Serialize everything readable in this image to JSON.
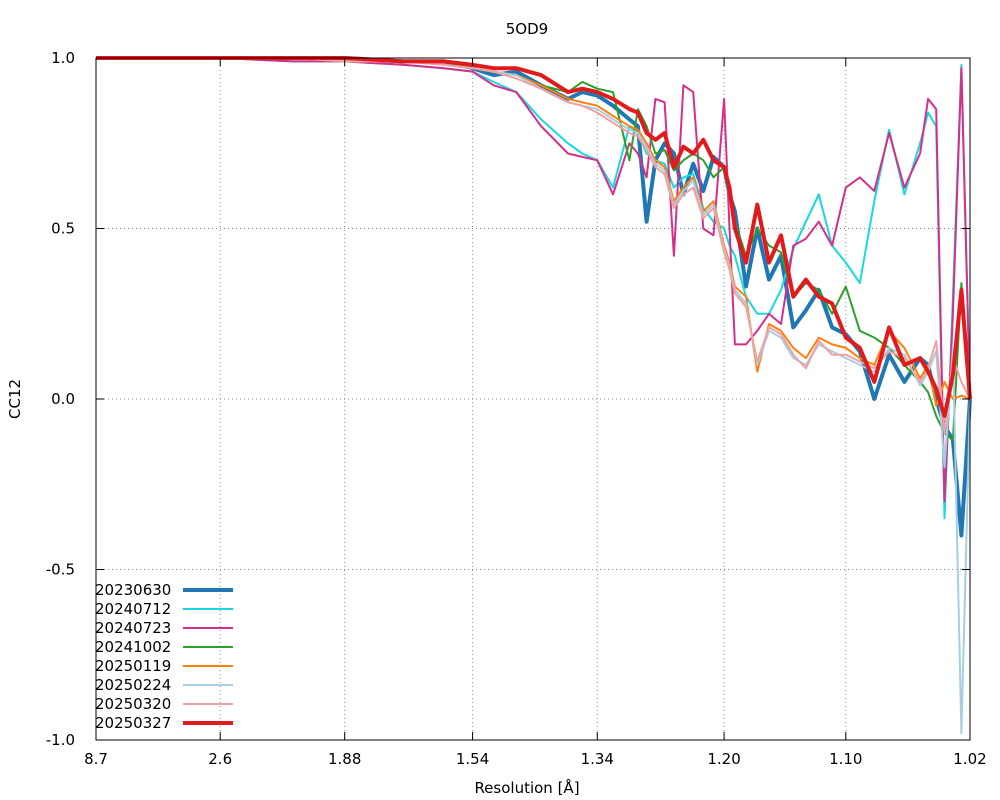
{
  "chart_data": {
    "type": "line",
    "title": "5OD9",
    "xlabel": "Resolution [Å]",
    "ylabel": "CC12",
    "ylim": [
      -1.0,
      1.0
    ],
    "yticks": [
      {
        "value": 1.0,
        "label": "1.0"
      },
      {
        "value": 0.5,
        "label": "0.5"
      },
      {
        "value": 0.0,
        "label": "0.0"
      },
      {
        "value": -0.5,
        "label": "-0.5"
      },
      {
        "value": -1.0,
        "label": "-1.0"
      }
    ],
    "x_scale": "1/d^2",
    "xlim": [
      8.7,
      1.02
    ],
    "xticks": [
      {
        "value": 8.7,
        "label": "8.7"
      },
      {
        "value": 2.6,
        "label": "2.6"
      },
      {
        "value": 1.88,
        "label": "1.88"
      },
      {
        "value": 1.54,
        "label": "1.54"
      },
      {
        "value": 1.34,
        "label": "1.34"
      },
      {
        "value": 1.2,
        "label": "1.20"
      },
      {
        "value": 1.1,
        "label": "1.10"
      },
      {
        "value": 1.02,
        "label": "1.02"
      }
    ],
    "grid": true,
    "legend_position": "bottom-left",
    "series": [
      {
        "name": "20230630",
        "color": "#1f77b4",
        "width": 4,
        "x": [
          8.7,
          3.5,
          2.6,
          2.1,
          1.88,
          1.7,
          1.6,
          1.54,
          1.5,
          1.46,
          1.42,
          1.38,
          1.36,
          1.34,
          1.32,
          1.3,
          1.29,
          1.28,
          1.27,
          1.26,
          1.25,
          1.24,
          1.23,
          1.22,
          1.21,
          1.2,
          1.195,
          1.19,
          1.18,
          1.17,
          1.16,
          1.15,
          1.14,
          1.13,
          1.12,
          1.11,
          1.1,
          1.09,
          1.08,
          1.07,
          1.06,
          1.05,
          1.045,
          1.04,
          1.035,
          1.03,
          1.025,
          1.02
        ],
        "y": [
          1.0,
          1.0,
          1.0,
          1.0,
          1.0,
          0.99,
          0.99,
          0.97,
          0.95,
          0.96,
          0.92,
          0.88,
          0.9,
          0.89,
          0.86,
          0.82,
          0.8,
          0.52,
          0.7,
          0.75,
          0.72,
          0.6,
          0.69,
          0.61,
          0.71,
          0.68,
          0.6,
          0.55,
          0.33,
          0.5,
          0.35,
          0.42,
          0.21,
          0.26,
          0.32,
          0.21,
          0.19,
          0.14,
          0.0,
          0.13,
          0.05,
          0.12,
          0.1,
          0.0,
          -0.08,
          -0.12,
          -0.4,
          0.0
        ]
      },
      {
        "name": "20240712",
        "color": "#17d9e0",
        "width": 2,
        "x": [
          8.7,
          3.5,
          2.6,
          2.1,
          1.88,
          1.7,
          1.6,
          1.54,
          1.5,
          1.46,
          1.42,
          1.38,
          1.36,
          1.34,
          1.32,
          1.3,
          1.29,
          1.28,
          1.27,
          1.26,
          1.25,
          1.24,
          1.23,
          1.22,
          1.21,
          1.2,
          1.195,
          1.19,
          1.18,
          1.17,
          1.16,
          1.15,
          1.14,
          1.13,
          1.12,
          1.11,
          1.1,
          1.09,
          1.08,
          1.07,
          1.06,
          1.05,
          1.045,
          1.04,
          1.035,
          1.03,
          1.025,
          1.02
        ],
        "y": [
          1.0,
          1.0,
          1.0,
          0.99,
          0.99,
          0.98,
          0.97,
          0.96,
          0.93,
          0.9,
          0.82,
          0.75,
          0.72,
          0.7,
          0.62,
          0.8,
          0.78,
          0.72,
          0.7,
          0.69,
          0.62,
          0.65,
          0.66,
          0.56,
          0.52,
          0.5,
          0.45,
          0.42,
          0.3,
          0.25,
          0.25,
          0.32,
          0.44,
          0.52,
          0.6,
          0.45,
          0.4,
          0.34,
          0.58,
          0.79,
          0.6,
          0.75,
          0.84,
          0.8,
          -0.35,
          0.3,
          0.98,
          0.0
        ]
      },
      {
        "name": "20240723",
        "color": "#d62f8a",
        "width": 2,
        "x": [
          8.7,
          3.5,
          2.6,
          2.1,
          1.88,
          1.7,
          1.6,
          1.54,
          1.5,
          1.46,
          1.42,
          1.38,
          1.36,
          1.34,
          1.32,
          1.3,
          1.29,
          1.28,
          1.27,
          1.26,
          1.25,
          1.24,
          1.23,
          1.22,
          1.21,
          1.2,
          1.195,
          1.19,
          1.18,
          1.17,
          1.16,
          1.15,
          1.14,
          1.13,
          1.12,
          1.11,
          1.1,
          1.09,
          1.08,
          1.07,
          1.06,
          1.05,
          1.045,
          1.04,
          1.035,
          1.03,
          1.025,
          1.02
        ],
        "y": [
          1.0,
          1.0,
          1.0,
          0.99,
          0.99,
          0.98,
          0.97,
          0.96,
          0.92,
          0.9,
          0.8,
          0.72,
          0.71,
          0.7,
          0.6,
          0.75,
          0.72,
          0.65,
          0.88,
          0.87,
          0.42,
          0.92,
          0.9,
          0.5,
          0.48,
          0.88,
          0.5,
          0.16,
          0.16,
          0.2,
          0.25,
          0.22,
          0.45,
          0.47,
          0.52,
          0.45,
          0.62,
          0.65,
          0.61,
          0.78,
          0.62,
          0.72,
          0.88,
          0.85,
          -0.3,
          0.25,
          0.97,
          0.0
        ]
      },
      {
        "name": "20241002",
        "color": "#2ca02c",
        "width": 2,
        "x": [
          8.7,
          3.5,
          2.6,
          2.1,
          1.88,
          1.7,
          1.6,
          1.54,
          1.5,
          1.46,
          1.42,
          1.38,
          1.36,
          1.34,
          1.32,
          1.3,
          1.29,
          1.28,
          1.27,
          1.26,
          1.25,
          1.24,
          1.23,
          1.22,
          1.21,
          1.2,
          1.195,
          1.19,
          1.18,
          1.17,
          1.16,
          1.15,
          1.14,
          1.13,
          1.12,
          1.11,
          1.1,
          1.09,
          1.08,
          1.07,
          1.06,
          1.05,
          1.045,
          1.04,
          1.035,
          1.03,
          1.025,
          1.02
        ],
        "y": [
          1.0,
          1.0,
          1.0,
          1.0,
          0.99,
          0.99,
          0.99,
          0.97,
          0.96,
          0.95,
          0.92,
          0.9,
          0.93,
          0.91,
          0.9,
          0.7,
          0.85,
          0.8,
          0.72,
          0.73,
          0.67,
          0.7,
          0.72,
          0.7,
          0.65,
          0.68,
          0.6,
          0.52,
          0.42,
          0.5,
          0.45,
          0.43,
          0.3,
          0.34,
          0.32,
          0.25,
          0.33,
          0.2,
          0.18,
          0.15,
          0.1,
          0.05,
          0.02,
          -0.05,
          -0.1,
          -0.12,
          0.34,
          0.0
        ]
      },
      {
        "name": "20250119",
        "color": "#ff7f0e",
        "width": 2,
        "x": [
          8.7,
          3.5,
          2.6,
          2.1,
          1.88,
          1.7,
          1.6,
          1.54,
          1.5,
          1.46,
          1.42,
          1.38,
          1.36,
          1.34,
          1.32,
          1.3,
          1.29,
          1.28,
          1.27,
          1.26,
          1.25,
          1.24,
          1.23,
          1.22,
          1.21,
          1.2,
          1.195,
          1.19,
          1.18,
          1.17,
          1.16,
          1.15,
          1.14,
          1.13,
          1.12,
          1.11,
          1.1,
          1.09,
          1.08,
          1.07,
          1.06,
          1.05,
          1.045,
          1.04,
          1.035,
          1.03,
          1.025,
          1.02
        ],
        "y": [
          1.0,
          1.0,
          1.0,
          1.0,
          0.99,
          0.99,
          0.98,
          0.97,
          0.96,
          0.95,
          0.92,
          0.88,
          0.87,
          0.86,
          0.83,
          0.8,
          0.79,
          0.75,
          0.7,
          0.68,
          0.58,
          0.62,
          0.65,
          0.55,
          0.58,
          0.45,
          0.4,
          0.33,
          0.3,
          0.08,
          0.22,
          0.2,
          0.15,
          0.12,
          0.18,
          0.16,
          0.15,
          0.12,
          0.1,
          0.2,
          0.15,
          0.06,
          0.1,
          -0.02,
          0.05,
          0.0,
          0.01,
          0.0
        ]
      },
      {
        "name": "20250224",
        "color": "#a6cee3",
        "width": 2,
        "x": [
          8.7,
          3.5,
          2.6,
          2.1,
          1.88,
          1.7,
          1.6,
          1.54,
          1.5,
          1.46,
          1.42,
          1.38,
          1.36,
          1.34,
          1.32,
          1.3,
          1.29,
          1.28,
          1.27,
          1.26,
          1.25,
          1.24,
          1.23,
          1.22,
          1.21,
          1.2,
          1.195,
          1.19,
          1.18,
          1.17,
          1.16,
          1.15,
          1.14,
          1.13,
          1.12,
          1.11,
          1.1,
          1.09,
          1.08,
          1.07,
          1.06,
          1.05,
          1.045,
          1.04,
          1.035,
          1.03,
          1.025,
          1.02
        ],
        "y": [
          1.0,
          1.0,
          1.0,
          1.0,
          0.99,
          0.99,
          0.98,
          0.97,
          0.96,
          0.95,
          0.91,
          0.87,
          0.86,
          0.85,
          0.82,
          0.79,
          0.78,
          0.74,
          0.69,
          0.67,
          0.57,
          0.61,
          0.64,
          0.54,
          0.57,
          0.44,
          0.39,
          0.32,
          0.28,
          0.1,
          0.2,
          0.18,
          0.12,
          0.1,
          0.16,
          0.14,
          0.12,
          0.1,
          0.08,
          0.15,
          0.13,
          0.04,
          0.08,
          0.14,
          -0.2,
          0.15,
          -0.98,
          0.0
        ]
      },
      {
        "name": "20250320",
        "color": "#f4a0a0",
        "width": 2,
        "x": [
          8.7,
          3.5,
          2.6,
          2.1,
          1.88,
          1.7,
          1.6,
          1.54,
          1.5,
          1.46,
          1.42,
          1.38,
          1.36,
          1.34,
          1.32,
          1.3,
          1.29,
          1.28,
          1.27,
          1.26,
          1.25,
          1.24,
          1.23,
          1.22,
          1.21,
          1.2,
          1.195,
          1.19,
          1.18,
          1.17,
          1.16,
          1.15,
          1.14,
          1.13,
          1.12,
          1.11,
          1.1,
          1.09,
          1.08,
          1.07,
          1.06,
          1.05,
          1.045,
          1.04,
          1.035,
          1.03,
          1.025,
          1.02
        ],
        "y": [
          1.0,
          1.0,
          1.0,
          1.0,
          0.99,
          0.99,
          0.98,
          0.97,
          0.96,
          0.94,
          0.91,
          0.87,
          0.86,
          0.84,
          0.81,
          0.78,
          0.77,
          0.73,
          0.68,
          0.66,
          0.56,
          0.6,
          0.62,
          0.53,
          0.56,
          0.43,
          0.38,
          0.31,
          0.27,
          0.11,
          0.21,
          0.19,
          0.13,
          0.09,
          0.17,
          0.13,
          0.13,
          0.11,
          0.09,
          0.14,
          0.12,
          0.05,
          0.09,
          0.17,
          -0.1,
          0.12,
          0.05,
          0.0
        ]
      },
      {
        "name": "20250327",
        "color": "#e31a1c",
        "width": 4,
        "x": [
          8.7,
          3.5,
          2.6,
          2.1,
          1.88,
          1.7,
          1.6,
          1.54,
          1.5,
          1.46,
          1.42,
          1.38,
          1.36,
          1.34,
          1.32,
          1.3,
          1.29,
          1.28,
          1.27,
          1.26,
          1.25,
          1.24,
          1.23,
          1.22,
          1.21,
          1.2,
          1.195,
          1.19,
          1.18,
          1.17,
          1.16,
          1.15,
          1.14,
          1.13,
          1.12,
          1.11,
          1.1,
          1.09,
          1.08,
          1.07,
          1.06,
          1.05,
          1.045,
          1.04,
          1.035,
          1.03,
          1.025,
          1.02
        ],
        "y": [
          1.0,
          1.0,
          1.0,
          1.0,
          1.0,
          0.99,
          0.99,
          0.98,
          0.97,
          0.97,
          0.95,
          0.9,
          0.91,
          0.9,
          0.88,
          0.85,
          0.84,
          0.78,
          0.76,
          0.78,
          0.68,
          0.74,
          0.72,
          0.76,
          0.7,
          0.68,
          0.62,
          0.5,
          0.4,
          0.57,
          0.4,
          0.48,
          0.3,
          0.35,
          0.3,
          0.28,
          0.18,
          0.15,
          0.05,
          0.21,
          0.1,
          0.12,
          0.08,
          0.03,
          -0.05,
          0.07,
          0.32,
          0.0
        ]
      }
    ]
  }
}
